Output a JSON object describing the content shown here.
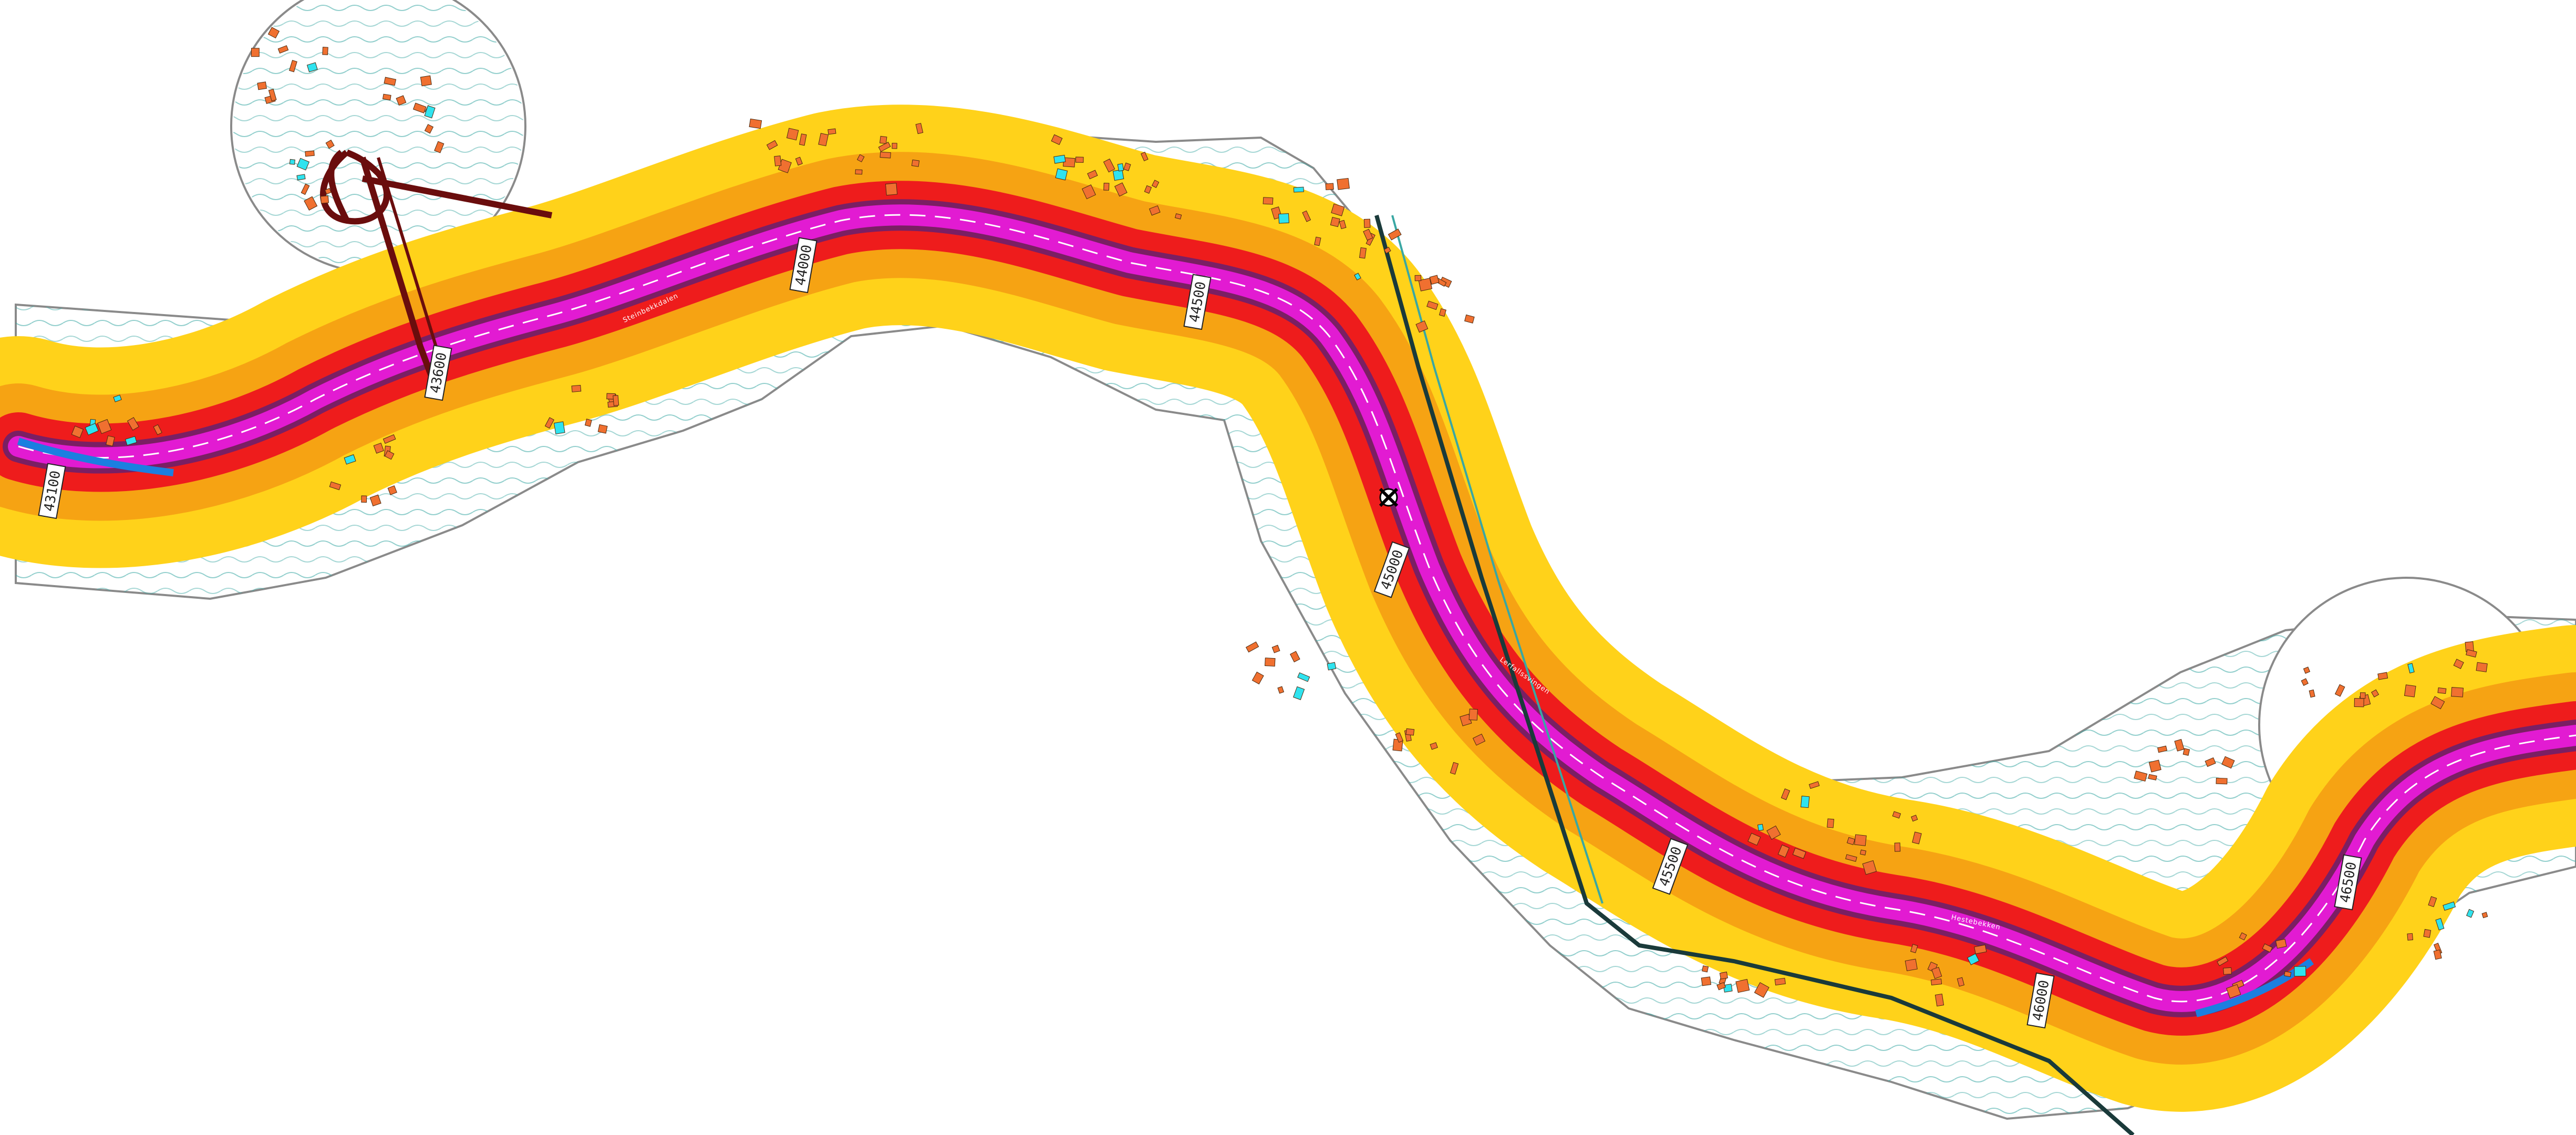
{
  "map": {
    "colors": {
      "background": "#ffffff",
      "buffer_outline": "#8a8a8a",
      "zone_low": "#ffd21a",
      "zone_mid": "#f6a313",
      "zone_high": "#ee1c1c",
      "road_core": "#e21bd2",
      "road_core_dark": "#7a1f63",
      "road_edge_blue": "#1b7fe0",
      "ramp": "#6a0d0d",
      "contour": "#3aa7a3",
      "building": "#f07030",
      "building_cyan": "#2fe3ef",
      "railway": "#1a3a3a"
    },
    "chainage_labels": [
      {
        "id": "ch-1",
        "text": "43100"
      },
      {
        "id": "ch-2",
        "text": "43600"
      },
      {
        "id": "ch-3",
        "text": "44000"
      },
      {
        "id": "ch-4",
        "text": "44500"
      },
      {
        "id": "ch-5",
        "text": "45000"
      },
      {
        "id": "ch-6",
        "text": "45500"
      },
      {
        "id": "ch-7",
        "text": "46000"
      },
      {
        "id": "ch-8",
        "text": "46500"
      }
    ],
    "road_annotations": [
      {
        "id": "ann-1",
        "text": "Steinbekkdalen"
      },
      {
        "id": "ann-2",
        "text": "Lerfallssvingen"
      },
      {
        "id": "ann-3",
        "text": "Hestebekken"
      }
    ]
  }
}
